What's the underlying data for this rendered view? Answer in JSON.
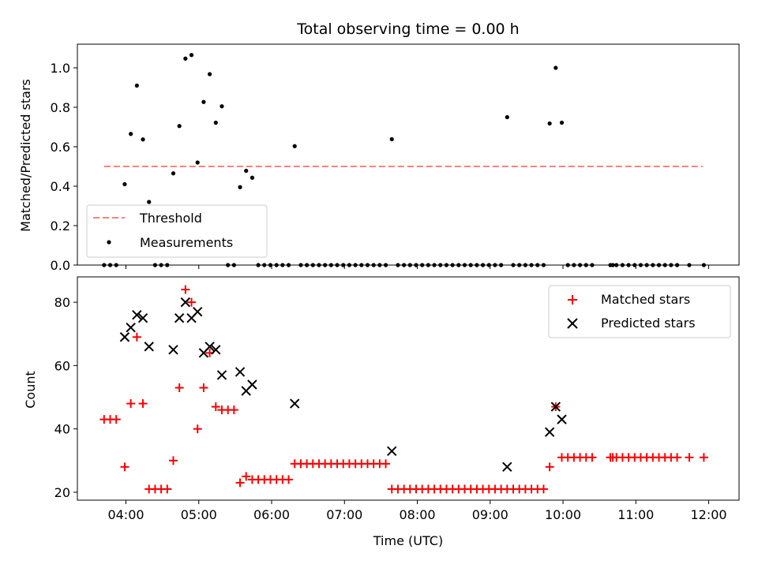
{
  "chart_data": [
    {
      "type": "scatter",
      "title": "Total observing time = 0.00 h",
      "ylabel": "Matched/Predicted stars",
      "xlabel": "",
      "x_axis_type": "time",
      "xlim": [
        "03:20",
        "12:25"
      ],
      "ylim": [
        0,
        1.12
      ],
      "y_ticks": [
        "0.0",
        "0.2",
        "0.4",
        "0.6",
        "0.8",
        "1.0"
      ],
      "x_tick_labels_visible": false,
      "grid": false,
      "legend_position": "lower-left",
      "threshold": {
        "name": "Threshold",
        "value": 0.5,
        "x_start": "03:42",
        "x_end": "11:55",
        "color": "#ff7f7f",
        "style": "dashed"
      },
      "series": [
        {
          "name": "Measurements",
          "marker": "dot",
          "color": "#000000",
          "points": [
            {
              "x": "03:42",
              "y": 0.0
            },
            {
              "x": "03:47",
              "y": 0.0
            },
            {
              "x": "03:52",
              "y": 0.0
            },
            {
              "x": "03:59",
              "y": 0.41
            },
            {
              "x": "04:04",
              "y": 0.665
            },
            {
              "x": "04:09",
              "y": 0.91
            },
            {
              "x": "04:14",
              "y": 0.637
            },
            {
              "x": "04:19",
              "y": 0.32
            },
            {
              "x": "04:24",
              "y": 0.0
            },
            {
              "x": "04:29",
              "y": 0.0
            },
            {
              "x": "04:34",
              "y": 0.0
            },
            {
              "x": "04:39",
              "y": 0.465
            },
            {
              "x": "04:44",
              "y": 0.705
            },
            {
              "x": "04:49",
              "y": 1.047
            },
            {
              "x": "04:54",
              "y": 1.065
            },
            {
              "x": "04:59",
              "y": 0.52
            },
            {
              "x": "05:04",
              "y": 0.827
            },
            {
              "x": "05:09",
              "y": 0.968
            },
            {
              "x": "05:14",
              "y": 0.722
            },
            {
              "x": "05:19",
              "y": 0.805
            },
            {
              "x": "05:24",
              "y": 0.0
            },
            {
              "x": "05:29",
              "y": 0.0
            },
            {
              "x": "05:34",
              "y": 0.395
            },
            {
              "x": "05:39",
              "y": 0.478
            },
            {
              "x": "05:44",
              "y": 0.443
            },
            {
              "x": "05:49",
              "y": 0.0
            },
            {
              "x": "05:54",
              "y": 0.0
            },
            {
              "x": "05:59",
              "y": 0.0
            },
            {
              "x": "06:04",
              "y": 0.0
            },
            {
              "x": "06:09",
              "y": 0.0
            },
            {
              "x": "06:14",
              "y": 0.0
            },
            {
              "x": "06:19",
              "y": 0.603
            },
            {
              "x": "06:24",
              "y": 0.0
            },
            {
              "x": "06:29",
              "y": 0.0
            },
            {
              "x": "06:34",
              "y": 0.0
            },
            {
              "x": "06:39",
              "y": 0.0
            },
            {
              "x": "06:44",
              "y": 0.0
            },
            {
              "x": "06:49",
              "y": 0.0
            },
            {
              "x": "06:54",
              "y": 0.0
            },
            {
              "x": "06:59",
              "y": 0.0
            },
            {
              "x": "07:04",
              "y": 0.0
            },
            {
              "x": "07:09",
              "y": 0.0
            },
            {
              "x": "07:14",
              "y": 0.0
            },
            {
              "x": "07:19",
              "y": 0.0
            },
            {
              "x": "07:24",
              "y": 0.0
            },
            {
              "x": "07:29",
              "y": 0.0
            },
            {
              "x": "07:34",
              "y": 0.0
            },
            {
              "x": "07:39",
              "y": 0.638
            },
            {
              "x": "07:44",
              "y": 0.0
            },
            {
              "x": "07:49",
              "y": 0.0
            },
            {
              "x": "07:54",
              "y": 0.0
            },
            {
              "x": "07:59",
              "y": 0.0
            },
            {
              "x": "08:04",
              "y": 0.0
            },
            {
              "x": "08:09",
              "y": 0.0
            },
            {
              "x": "08:14",
              "y": 0.0
            },
            {
              "x": "08:19",
              "y": 0.0
            },
            {
              "x": "08:24",
              "y": 0.0
            },
            {
              "x": "08:29",
              "y": 0.0
            },
            {
              "x": "08:34",
              "y": 0.0
            },
            {
              "x": "08:39",
              "y": 0.0
            },
            {
              "x": "08:44",
              "y": 0.0
            },
            {
              "x": "08:49",
              "y": 0.0
            },
            {
              "x": "08:54",
              "y": 0.0
            },
            {
              "x": "08:59",
              "y": 0.0
            },
            {
              "x": "09:04",
              "y": 0.0
            },
            {
              "x": "09:09",
              "y": 0.0
            },
            {
              "x": "09:14",
              "y": 0.75
            },
            {
              "x": "09:19",
              "y": 0.0
            },
            {
              "x": "09:24",
              "y": 0.0
            },
            {
              "x": "09:29",
              "y": 0.0
            },
            {
              "x": "09:34",
              "y": 0.0
            },
            {
              "x": "09:39",
              "y": 0.0
            },
            {
              "x": "09:44",
              "y": 0.0
            },
            {
              "x": "09:49",
              "y": 0.718
            },
            {
              "x": "09:54",
              "y": 1.0
            },
            {
              "x": "09:59",
              "y": 0.722
            },
            {
              "x": "10:04",
              "y": 0.0
            },
            {
              "x": "10:09",
              "y": 0.0
            },
            {
              "x": "10:14",
              "y": 0.0
            },
            {
              "x": "10:19",
              "y": 0.0
            },
            {
              "x": "10:24",
              "y": 0.0
            },
            {
              "x": "10:39",
              "y": 0.0
            },
            {
              "x": "10:41",
              "y": 0.0
            },
            {
              "x": "10:44",
              "y": 0.0
            },
            {
              "x": "10:49",
              "y": 0.0
            },
            {
              "x": "10:54",
              "y": 0.0
            },
            {
              "x": "10:59",
              "y": 0.0
            },
            {
              "x": "11:04",
              "y": 0.0
            },
            {
              "x": "11:09",
              "y": 0.0
            },
            {
              "x": "11:14",
              "y": 0.0
            },
            {
              "x": "11:19",
              "y": 0.0
            },
            {
              "x": "11:24",
              "y": 0.0
            },
            {
              "x": "11:29",
              "y": 0.0
            },
            {
              "x": "11:34",
              "y": 0.0
            },
            {
              "x": "11:44",
              "y": 0.0
            },
            {
              "x": "11:56",
              "y": 0.0
            }
          ]
        }
      ]
    },
    {
      "type": "scatter",
      "title": "",
      "xlabel": "Time (UTC)",
      "ylabel": "Count",
      "x_axis_type": "time",
      "xlim": [
        "03:20",
        "12:25"
      ],
      "ylim": [
        17.5,
        88
      ],
      "x_ticks": [
        "04:00",
        "05:00",
        "06:00",
        "07:00",
        "08:00",
        "09:00",
        "10:00",
        "11:00",
        "12:00"
      ],
      "y_ticks": [
        "20",
        "40",
        "60",
        "80"
      ],
      "grid": false,
      "legend_position": "upper-right",
      "series": [
        {
          "name": "Matched stars",
          "marker": "plus",
          "color": "#ff0000",
          "points": [
            {
              "x": "03:42",
              "y": 43
            },
            {
              "x": "03:47",
              "y": 43
            },
            {
              "x": "03:52",
              "y": 43
            },
            {
              "x": "03:59",
              "y": 28
            },
            {
              "x": "04:04",
              "y": 48
            },
            {
              "x": "04:09",
              "y": 69
            },
            {
              "x": "04:14",
              "y": 48
            },
            {
              "x": "04:19",
              "y": 21
            },
            {
              "x": "04:24",
              "y": 21
            },
            {
              "x": "04:29",
              "y": 21
            },
            {
              "x": "04:34",
              "y": 21
            },
            {
              "x": "04:39",
              "y": 30
            },
            {
              "x": "04:44",
              "y": 53
            },
            {
              "x": "04:49",
              "y": 84
            },
            {
              "x": "04:54",
              "y": 80
            },
            {
              "x": "04:59",
              "y": 40
            },
            {
              "x": "05:04",
              "y": 53
            },
            {
              "x": "05:09",
              "y": 64
            },
            {
              "x": "05:14",
              "y": 47
            },
            {
              "x": "05:19",
              "y": 46
            },
            {
              "x": "05:24",
              "y": 46
            },
            {
              "x": "05:29",
              "y": 46
            },
            {
              "x": "05:34",
              "y": 23
            },
            {
              "x": "05:39",
              "y": 25
            },
            {
              "x": "05:44",
              "y": 24
            },
            {
              "x": "05:49",
              "y": 24
            },
            {
              "x": "05:54",
              "y": 24
            },
            {
              "x": "05:59",
              "y": 24
            },
            {
              "x": "06:04",
              "y": 24
            },
            {
              "x": "06:09",
              "y": 24
            },
            {
              "x": "06:14",
              "y": 24
            },
            {
              "x": "06:19",
              "y": 29
            },
            {
              "x": "06:24",
              "y": 29
            },
            {
              "x": "06:29",
              "y": 29
            },
            {
              "x": "06:34",
              "y": 29
            },
            {
              "x": "06:39",
              "y": 29
            },
            {
              "x": "06:44",
              "y": 29
            },
            {
              "x": "06:49",
              "y": 29
            },
            {
              "x": "06:54",
              "y": 29
            },
            {
              "x": "06:59",
              "y": 29
            },
            {
              "x": "07:04",
              "y": 29
            },
            {
              "x": "07:09",
              "y": 29
            },
            {
              "x": "07:14",
              "y": 29
            },
            {
              "x": "07:19",
              "y": 29
            },
            {
              "x": "07:24",
              "y": 29
            },
            {
              "x": "07:29",
              "y": 29
            },
            {
              "x": "07:34",
              "y": 29
            },
            {
              "x": "07:39",
              "y": 21
            },
            {
              "x": "07:44",
              "y": 21
            },
            {
              "x": "07:49",
              "y": 21
            },
            {
              "x": "07:54",
              "y": 21
            },
            {
              "x": "07:59",
              "y": 21
            },
            {
              "x": "08:04",
              "y": 21
            },
            {
              "x": "08:09",
              "y": 21
            },
            {
              "x": "08:14",
              "y": 21
            },
            {
              "x": "08:19",
              "y": 21
            },
            {
              "x": "08:24",
              "y": 21
            },
            {
              "x": "08:29",
              "y": 21
            },
            {
              "x": "08:34",
              "y": 21
            },
            {
              "x": "08:39",
              "y": 21
            },
            {
              "x": "08:44",
              "y": 21
            },
            {
              "x": "08:49",
              "y": 21
            },
            {
              "x": "08:54",
              "y": 21
            },
            {
              "x": "08:59",
              "y": 21
            },
            {
              "x": "09:04",
              "y": 21
            },
            {
              "x": "09:09",
              "y": 21
            },
            {
              "x": "09:14",
              "y": 21
            },
            {
              "x": "09:19",
              "y": 21
            },
            {
              "x": "09:24",
              "y": 21
            },
            {
              "x": "09:29",
              "y": 21
            },
            {
              "x": "09:34",
              "y": 21
            },
            {
              "x": "09:39",
              "y": 21
            },
            {
              "x": "09:44",
              "y": 21
            },
            {
              "x": "09:49",
              "y": 28
            },
            {
              "x": "09:54",
              "y": 47
            },
            {
              "x": "09:59",
              "y": 31
            },
            {
              "x": "10:04",
              "y": 31
            },
            {
              "x": "10:09",
              "y": 31
            },
            {
              "x": "10:14",
              "y": 31
            },
            {
              "x": "10:19",
              "y": 31
            },
            {
              "x": "10:24",
              "y": 31
            },
            {
              "x": "10:39",
              "y": 31
            },
            {
              "x": "10:41",
              "y": 31
            },
            {
              "x": "10:44",
              "y": 31
            },
            {
              "x": "10:49",
              "y": 31
            },
            {
              "x": "10:54",
              "y": 31
            },
            {
              "x": "10:59",
              "y": 31
            },
            {
              "x": "11:04",
              "y": 31
            },
            {
              "x": "11:09",
              "y": 31
            },
            {
              "x": "11:14",
              "y": 31
            },
            {
              "x": "11:19",
              "y": 31
            },
            {
              "x": "11:24",
              "y": 31
            },
            {
              "x": "11:29",
              "y": 31
            },
            {
              "x": "11:34",
              "y": 31
            },
            {
              "x": "11:44",
              "y": 31
            },
            {
              "x": "11:56",
              "y": 31
            }
          ]
        },
        {
          "name": "Predicted stars",
          "marker": "x",
          "color": "#000000",
          "points": [
            {
              "x": "03:59",
              "y": 69
            },
            {
              "x": "04:04",
              "y": 72
            },
            {
              "x": "04:09",
              "y": 76
            },
            {
              "x": "04:14",
              "y": 75
            },
            {
              "x": "04:19",
              "y": 66
            },
            {
              "x": "04:39",
              "y": 65
            },
            {
              "x": "04:44",
              "y": 75
            },
            {
              "x": "04:49",
              "y": 80
            },
            {
              "x": "04:54",
              "y": 75
            },
            {
              "x": "04:59",
              "y": 77
            },
            {
              "x": "05:04",
              "y": 64
            },
            {
              "x": "05:09",
              "y": 66
            },
            {
              "x": "05:14",
              "y": 65
            },
            {
              "x": "05:19",
              "y": 57
            },
            {
              "x": "05:34",
              "y": 58
            },
            {
              "x": "05:39",
              "y": 52
            },
            {
              "x": "05:44",
              "y": 54
            },
            {
              "x": "06:19",
              "y": 48
            },
            {
              "x": "07:39",
              "y": 33
            },
            {
              "x": "09:14",
              "y": 28
            },
            {
              "x": "09:49",
              "y": 39
            },
            {
              "x": "09:54",
              "y": 47
            },
            {
              "x": "09:59",
              "y": 43
            }
          ]
        }
      ]
    }
  ]
}
